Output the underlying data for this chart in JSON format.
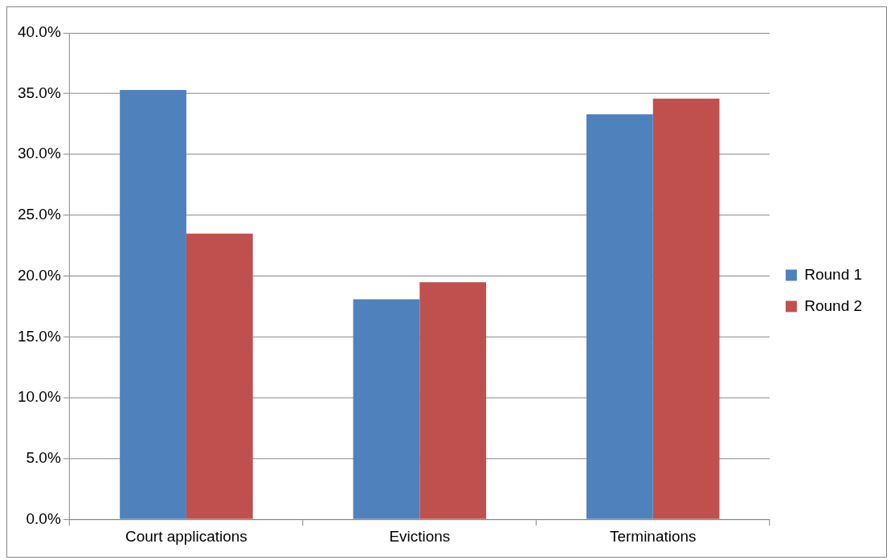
{
  "chart_data": {
    "type": "bar",
    "categories": [
      "Court applications",
      "Evictions",
      "Terminations"
    ],
    "series": [
      {
        "name": "Round 1",
        "color": "#4f81bd",
        "values": [
          35.3,
          18.1,
          33.3
        ]
      },
      {
        "name": "Round 2",
        "color": "#c0504d",
        "values": [
          23.5,
          19.5,
          34.6
        ]
      }
    ],
    "ylim": [
      0,
      40
    ],
    "yticks": [
      {
        "value": 0,
        "label": "0.0%"
      },
      {
        "value": 5,
        "label": "5.0%"
      },
      {
        "value": 10,
        "label": "10.0%"
      },
      {
        "value": 15,
        "label": "15.0%"
      },
      {
        "value": 20,
        "label": "20.0%"
      },
      {
        "value": 25,
        "label": "25.0%"
      },
      {
        "value": 30,
        "label": "30.0%"
      },
      {
        "value": 35,
        "label": "35.0%"
      },
      {
        "value": 40,
        "label": "40.0%"
      }
    ],
    "grid": "y",
    "legend": "right"
  }
}
